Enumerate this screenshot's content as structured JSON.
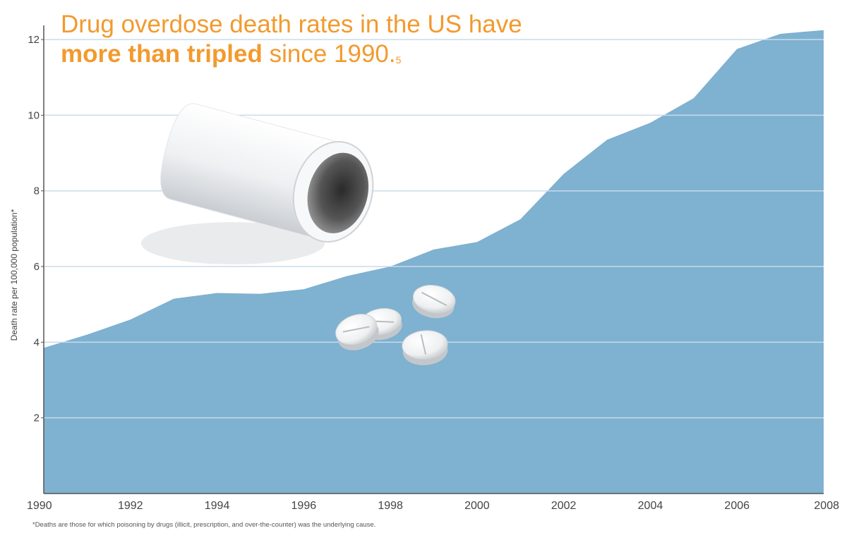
{
  "chart_data": {
    "type": "area",
    "title_line1": "Drug overdose death rates in the US have",
    "title_bold": "more than tripled",
    "title_rest": " since 1990.",
    "title_sup": "5",
    "ylabel": "Death rate per 100,000 population*",
    "xlabel": "",
    "x": [
      1990,
      1991,
      1992,
      1993,
      1994,
      1995,
      1996,
      1997,
      1998,
      1999,
      2000,
      2001,
      2002,
      2003,
      2004,
      2005,
      2006,
      2007,
      2008
    ],
    "values": [
      3.85,
      4.2,
      4.6,
      5.15,
      5.3,
      5.28,
      5.4,
      5.75,
      6.0,
      6.45,
      6.65,
      7.25,
      8.45,
      9.35,
      9.8,
      10.45,
      11.75,
      12.15,
      12.25
    ],
    "xticks": [
      "1990",
      "1992",
      "1994",
      "1996",
      "1998",
      "2000",
      "2002",
      "2004",
      "2006",
      "2008"
    ],
    "yticks": [
      "2",
      "4",
      "6",
      "8",
      "10",
      "12"
    ],
    "xlim": [
      1990,
      2008
    ],
    "ylim": [
      0,
      12.3
    ],
    "grid": "horizontal",
    "area_color": "#7fb1d0",
    "grid_color": "#c8dceb",
    "title_color": "#f29a2e",
    "illustration": "pill-bottle-icon with spilled pills",
    "footnote": "*Deaths are those for which poisoning by drugs (illicit, prescription, and over-the-counter) was the underlying cause."
  }
}
